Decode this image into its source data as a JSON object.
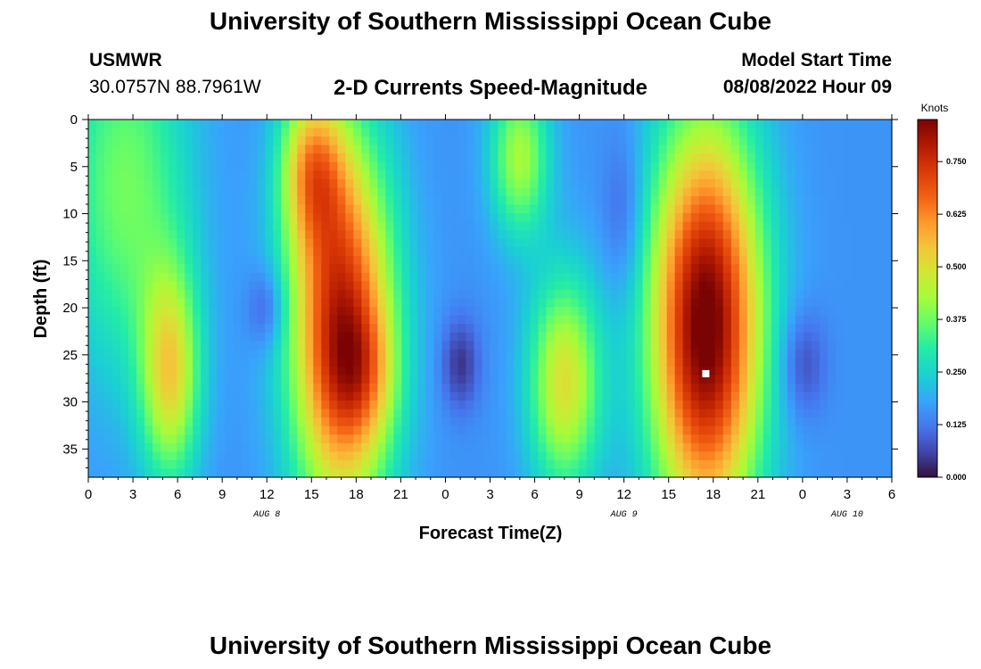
{
  "header": {
    "title": "University of Southern Mississippi Ocean Cube",
    "station": "USMWR",
    "coords": "30.0757N  88.7961W",
    "model_start_label": "Model Start Time",
    "model_start_value": "08/08/2022 Hour 09"
  },
  "footer": {
    "title": "University of Southern Mississippi Ocean Cube"
  },
  "chart_data": {
    "type": "heatmap",
    "title": "2-D Currents Speed-Magnitude",
    "xlabel": "Forecast Time(Z)",
    "ylabel": "Depth (ft)",
    "x_range_hours": [
      0,
      54
    ],
    "x_ticks": [
      "0",
      "3",
      "6",
      "9",
      "12",
      "15",
      "18",
      "21",
      "0",
      "3",
      "6",
      "9",
      "12",
      "15",
      "18",
      "21",
      "0",
      "3",
      "6"
    ],
    "day_labels": [
      {
        "label": "AUG 8",
        "hour": 12
      },
      {
        "label": "AUG 9",
        "hour": 36
      },
      {
        "label": "AUG 10",
        "hour": 51
      }
    ],
    "y_range_ft": [
      0,
      38
    ],
    "y_reversed": true,
    "y_ticks": [
      "0",
      "5",
      "10",
      "15",
      "20",
      "25",
      "30",
      "35"
    ],
    "colorbar": {
      "unit": "Knots",
      "range": [
        0,
        0.85
      ],
      "tick_labels": [
        "0.000",
        "0.125",
        "0.250",
        "0.375",
        "0.500",
        "0.625",
        "0.750"
      ]
    },
    "blobs": [
      {
        "t": 2.5,
        "d": 7,
        "st": 3,
        "sd": 14,
        "v": 0.22
      },
      {
        "t": 5.5,
        "d": 27,
        "st": 1.4,
        "sd": 8,
        "v": 0.34
      },
      {
        "t": 12,
        "d": 20,
        "st": 0.9,
        "sd": 3,
        "v": -0.1
      },
      {
        "t": 17,
        "d": 22,
        "st": 2.4,
        "sd": 14,
        "v": 0.62
      },
      {
        "t": 18.5,
        "d": 27,
        "st": 1.6,
        "sd": 5,
        "v": 0.14
      },
      {
        "t": 15,
        "d": 5,
        "st": 1.5,
        "sd": 6,
        "v": 0.32
      },
      {
        "t": 25,
        "d": 26,
        "st": 0.9,
        "sd": 3.5,
        "v": -0.12
      },
      {
        "t": 29,
        "d": 4,
        "st": 1.4,
        "sd": 6,
        "v": 0.27
      },
      {
        "t": 32,
        "d": 28,
        "st": 1.7,
        "sd": 8,
        "v": 0.34
      },
      {
        "t": 36,
        "d": 10,
        "st": 1,
        "sd": 6,
        "v": -0.08
      },
      {
        "t": 41.5,
        "d": 22,
        "st": 2.6,
        "sd": 15,
        "v": 0.72
      },
      {
        "t": 48,
        "d": 26,
        "st": 1.1,
        "sd": 4,
        "v": -0.1
      }
    ],
    "base_value": 0.16,
    "marker": {
      "hour": 41.5,
      "depth": 27
    }
  }
}
